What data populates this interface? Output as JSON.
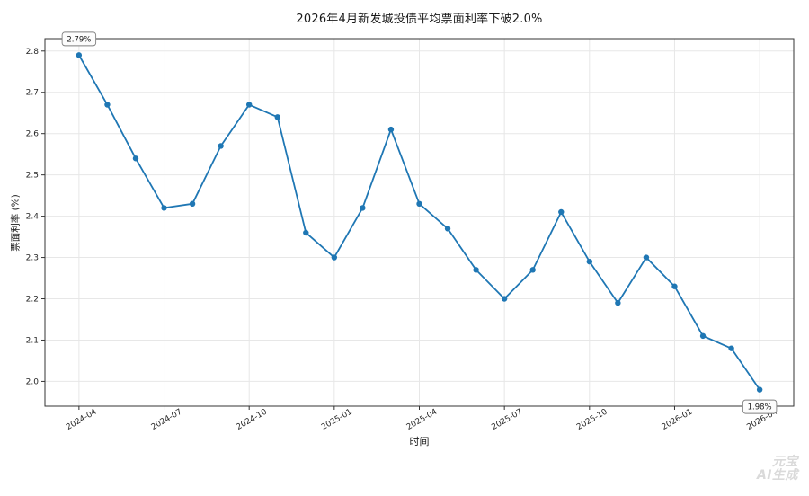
{
  "watermark": {
    "line1": "元宝",
    "line2": "AI生成"
  },
  "chart_data": {
    "type": "line",
    "title": "2026年4月新发城投债平均票面利率下破2.0%",
    "xlabel": "时间",
    "ylabel": "票面利率 (%)",
    "x": [
      "2024-04",
      "2024-05",
      "2024-06",
      "2024-07",
      "2024-08",
      "2024-09",
      "2024-10",
      "2024-11",
      "2024-12",
      "2025-01",
      "2025-02",
      "2025-03",
      "2025-04",
      "2025-05",
      "2025-06",
      "2025-07",
      "2025-08",
      "2025-09",
      "2025-10",
      "2025-11",
      "2025-12",
      "2026-01",
      "2026-02",
      "2026-03",
      "2026-04"
    ],
    "values": [
      2.79,
      2.67,
      2.54,
      2.42,
      2.43,
      2.57,
      2.67,
      2.64,
      2.36,
      2.3,
      2.42,
      2.61,
      2.43,
      2.37,
      2.27,
      2.2,
      2.27,
      2.41,
      2.29,
      2.19,
      2.3,
      2.23,
      2.11,
      2.08,
      1.98
    ],
    "xtick_labels": [
      "2024-04",
      "2024-07",
      "2024-10",
      "2025-01",
      "2025-04",
      "2025-07",
      "2025-10",
      "2026-01",
      "2026-04"
    ],
    "yticks": [
      2.0,
      2.1,
      2.2,
      2.3,
      2.4,
      2.5,
      2.6,
      2.7,
      2.8
    ],
    "ylim": [
      1.94,
      2.83
    ],
    "grid": true,
    "legend": null,
    "line_color": "#1f77b4",
    "grid_color": "#e7e7e7",
    "spine_color": "#333333",
    "tick_label_color": "#262626",
    "annotations": [
      {
        "text": "2.79%",
        "x": "2024-04",
        "position": "above"
      },
      {
        "text": "1.98%",
        "x": "2026-04",
        "position": "below"
      }
    ]
  }
}
